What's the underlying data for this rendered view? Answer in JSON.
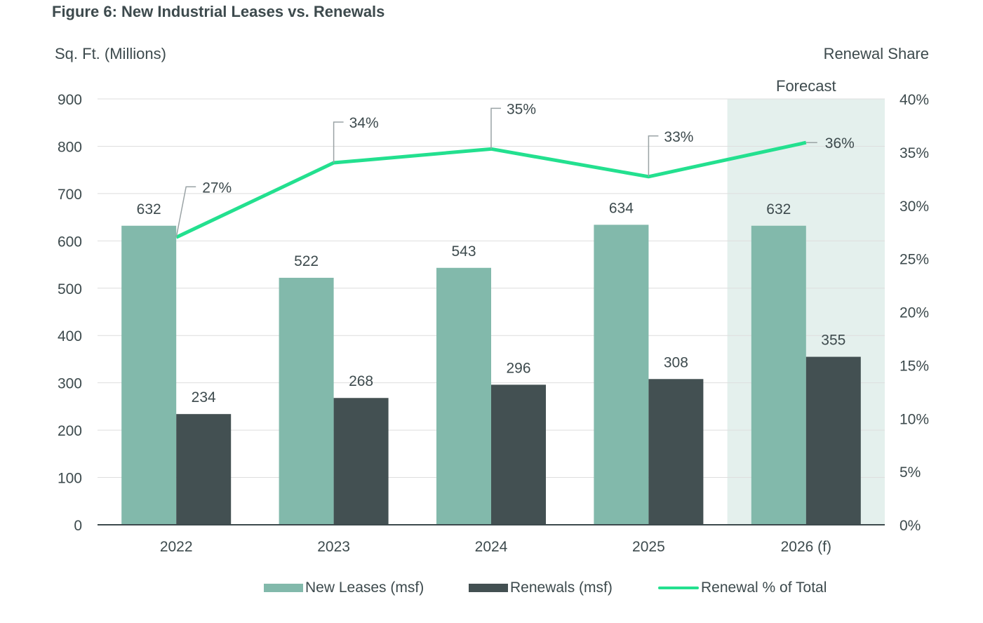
{
  "title": "Figure 6: New Industrial Leases vs. Renewals",
  "colors": {
    "new_leases": "#82b9ab",
    "renewals": "#435052",
    "renewal_pct": "#23e08f",
    "forecast_band": "#e4f0ed",
    "grid": "#dedede",
    "text": "#3d4a4d"
  },
  "chart_data": {
    "type": "bar",
    "title": "Figure 6: New Industrial Leases vs. Renewals",
    "categories": [
      "2022",
      "2023",
      "2024",
      "2025",
      "2026 (f)"
    ],
    "ylabel": "Sq. Ft. (Millions)",
    "y2label": "Renewal Share",
    "ylim": [
      0,
      900
    ],
    "yticks": [
      0,
      100,
      200,
      300,
      400,
      500,
      600,
      700,
      800,
      900
    ],
    "y2lim": [
      0,
      40
    ],
    "y2ticks": [
      "0%",
      "5%",
      "10%",
      "15%",
      "20%",
      "25%",
      "30%",
      "35%",
      "40%"
    ],
    "grid": true,
    "forecast_label": "Forecast",
    "forecast_start_index": 4,
    "series": [
      {
        "name": "New Leases (msf)",
        "type": "bar",
        "values": [
          632,
          522,
          543,
          634,
          632
        ],
        "labels": [
          "632",
          "522",
          "543",
          "634",
          "632"
        ]
      },
      {
        "name": "Renewals (msf)",
        "type": "bar",
        "values": [
          234,
          268,
          296,
          308,
          355
        ],
        "labels": [
          "234",
          "268",
          "296",
          "308",
          "355"
        ]
      },
      {
        "name": "Renewal % of Total",
        "type": "line",
        "axis": "right",
        "values": [
          27,
          34,
          35.3,
          32.7,
          35.9
        ],
        "labels": [
          "27%",
          "34%",
          "35%",
          "33%",
          "36%"
        ]
      }
    ],
    "legend_position": "bottom"
  }
}
